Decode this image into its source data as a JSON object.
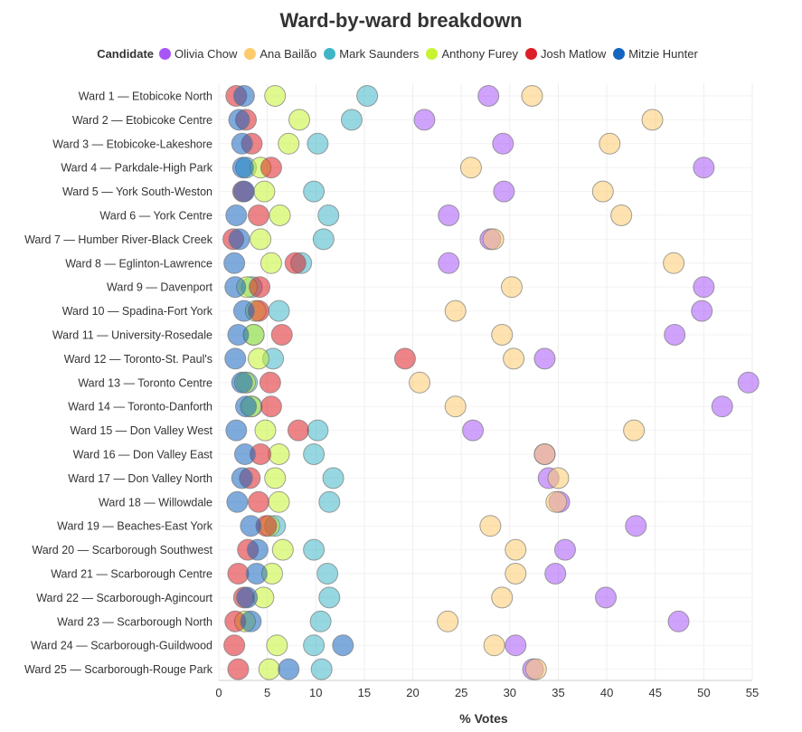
{
  "chart_data": {
    "type": "scatter",
    "title": "Ward-by-ward breakdown",
    "legend_title": "Candidate",
    "legend_position": "top",
    "xlabel": "% Votes",
    "xlim": [
      0,
      55
    ],
    "x_ticks": [
      "0",
      "5",
      "10",
      "15",
      "20",
      "25",
      "30",
      "35",
      "40",
      "45",
      "50",
      "55"
    ],
    "grid": true,
    "categories": [
      "Ward 1 — Etobicoke North",
      "Ward 2 — Etobicoke Centre",
      "Ward 3 — Etobicoke-Lakeshore",
      "Ward 4 — Parkdale-High Park",
      "Ward 5 — York South-Weston",
      "Ward 6 — York Centre",
      "Ward 7 — Humber River-Black Creek",
      "Ward 8 — Eglinton-Lawrence",
      "Ward 9 — Davenport",
      "Ward 10 — Spadina-Fort York",
      "Ward 11 — University-Rosedale",
      "Ward 12 — Toronto-St. Paul's",
      "Ward 13 — Toronto Centre",
      "Ward 14 — Toronto-Danforth",
      "Ward 15 — Don Valley West",
      "Ward 16 — Don Valley East",
      "Ward 17 — Don Valley North",
      "Ward 18 — Willowdale",
      "Ward 19 — Beaches-East York",
      "Ward 20 — Scarborough Southwest",
      "Ward 21 — Scarborough Centre",
      "Ward 22 — Scarborough-Agincourt",
      "Ward 23 — Scarborough North",
      "Ward 24 — Scarborough-Guildwood",
      "Ward 25 — Scarborough-Rouge Park"
    ],
    "series": [
      {
        "name": "Olivia Chow",
        "color": "#a855f7",
        "values": [
          27.8,
          21.2,
          29.3,
          50.0,
          29.4,
          23.7,
          28.0,
          23.7,
          50.0,
          49.8,
          47.0,
          33.6,
          54.6,
          51.9,
          26.2,
          33.6,
          34.0,
          35.1,
          43.0,
          35.7,
          34.7,
          39.9,
          47.4,
          30.6,
          32.4
        ]
      },
      {
        "name": "Ana Bailão",
        "color": "#fdcb6e",
        "values": [
          32.3,
          44.7,
          40.3,
          26.0,
          39.6,
          41.5,
          28.3,
          46.9,
          30.2,
          24.4,
          29.2,
          30.4,
          20.7,
          24.4,
          42.8,
          33.6,
          35.0,
          34.8,
          28.0,
          30.6,
          30.6,
          29.2,
          23.6,
          28.4,
          32.7
        ]
      },
      {
        "name": "Mark Saunders",
        "color": "#3fb6c8",
        "values": [
          15.3,
          13.7,
          10.2,
          2.8,
          9.8,
          11.3,
          10.8,
          8.5,
          3.4,
          6.2,
          3.6,
          5.6,
          2.9,
          3.4,
          10.2,
          9.8,
          11.8,
          11.4,
          5.8,
          9.8,
          11.2,
          11.4,
          10.5,
          9.8,
          10.6
        ]
      },
      {
        "name": "Anthony Furey",
        "color": "#c6f432",
        "values": [
          5.8,
          8.3,
          7.2,
          4.3,
          4.7,
          6.3,
          4.3,
          5.4,
          2.9,
          3.8,
          3.6,
          4.1,
          2.7,
          3.3,
          4.8,
          6.2,
          5.8,
          6.2,
          5.2,
          6.6,
          5.5,
          4.6,
          2.7,
          6.0,
          5.2
        ]
      },
      {
        "name": "Josh Matlow",
        "color": "#dc1f26",
        "values": [
          1.8,
          2.8,
          3.4,
          5.4,
          2.5,
          4.1,
          1.5,
          7.9,
          4.2,
          4.1,
          6.5,
          19.2,
          5.3,
          5.4,
          8.2,
          4.3,
          3.2,
          4.1,
          4.9,
          3.0,
          2.0,
          2.6,
          1.7,
          1.6,
          2.0
        ]
      },
      {
        "name": "Mitzie Hunter",
        "color": "#1565c0",
        "values": [
          2.6,
          2.1,
          2.4,
          2.5,
          2.6,
          1.8,
          2.1,
          1.6,
          1.7,
          2.6,
          2.0,
          1.7,
          2.4,
          2.8,
          1.8,
          2.7,
          2.4,
          1.9,
          3.3,
          4.0,
          3.9,
          2.9,
          3.3,
          12.8,
          7.2
        ]
      }
    ]
  }
}
